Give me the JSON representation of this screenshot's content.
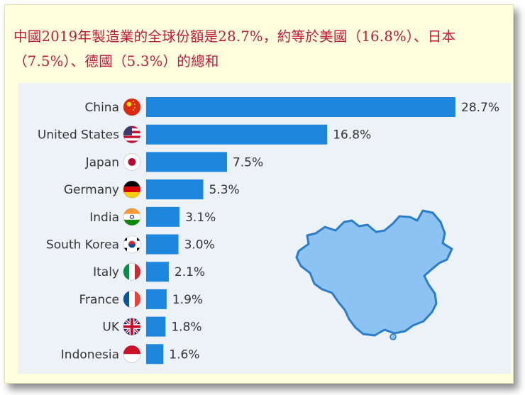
{
  "headline": {
    "text": "中國2019年製造業的全球份額是28.7%，約等於美國（16.8%）、日本（7.5%）、德國（5.3%）的總和"
  },
  "colors": {
    "bar": "#1d86df",
    "panel_background": "#edf2f7",
    "frame_background": "#fffedd",
    "headline": "#c0163a",
    "china_map_fill": "#8cc3f2",
    "china_map_stroke": "#2c7dc9"
  },
  "chart_data": {
    "type": "bar",
    "orientation": "horizontal",
    "categories": [
      "China",
      "United States",
      "Japan",
      "Germany",
      "India",
      "South Korea",
      "Italy",
      "France",
      "UK",
      "Indonesia"
    ],
    "values": [
      28.7,
      16.8,
      7.5,
      5.3,
      3.1,
      3.0,
      2.1,
      1.9,
      1.8,
      1.6
    ],
    "value_labels": [
      "28.7%",
      "16.8%",
      "7.5%",
      "5.3%",
      "3.1%",
      "3.0%",
      "2.1%",
      "1.9%",
      "1.8%",
      "1.6%"
    ],
    "flag_icons": [
      "china-flag-icon",
      "united-states-flag-icon",
      "japan-flag-icon",
      "germany-flag-icon",
      "india-flag-icon",
      "south-korea-flag-icon",
      "italy-flag-icon",
      "france-flag-icon",
      "uk-flag-icon",
      "indonesia-flag-icon"
    ],
    "xlim": [
      0,
      28.7
    ],
    "title": "",
    "xlabel": "",
    "ylabel": "",
    "grid": false,
    "legend": "none",
    "decoration": "china-map-icon"
  }
}
